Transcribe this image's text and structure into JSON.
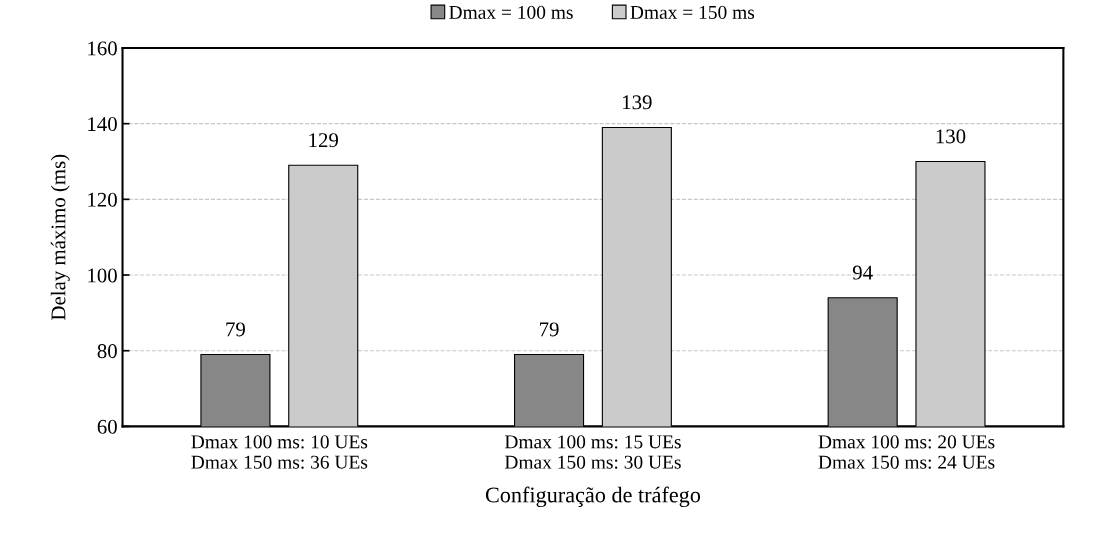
{
  "chart_data": {
    "type": "bar",
    "categories": [
      "Dmax 100 ms: 10 UEs\nDmax 150 ms: 36 UEs",
      "Dmax 100 ms: 15 UEs\nDmax 150 ms: 30 UEs",
      "Dmax 100 ms: 20 UEs\nDmax 150 ms: 24 UEs"
    ],
    "series": [
      {
        "name": "Dmax = 100 ms",
        "color": "#878787",
        "values": [
          79,
          79,
          94
        ]
      },
      {
        "name": "Dmax = 150 ms",
        "color": "#cbcbcb",
        "values": [
          129,
          139,
          130
        ]
      }
    ],
    "xlabel": "Configuração de tráfego",
    "ylabel": "Delay máximo (ms)",
    "ylim": [
      60,
      160
    ],
    "yticks": [
      60,
      80,
      100,
      120,
      140,
      160
    ],
    "grid": "y",
    "legend": "top",
    "data_labels": true
  }
}
